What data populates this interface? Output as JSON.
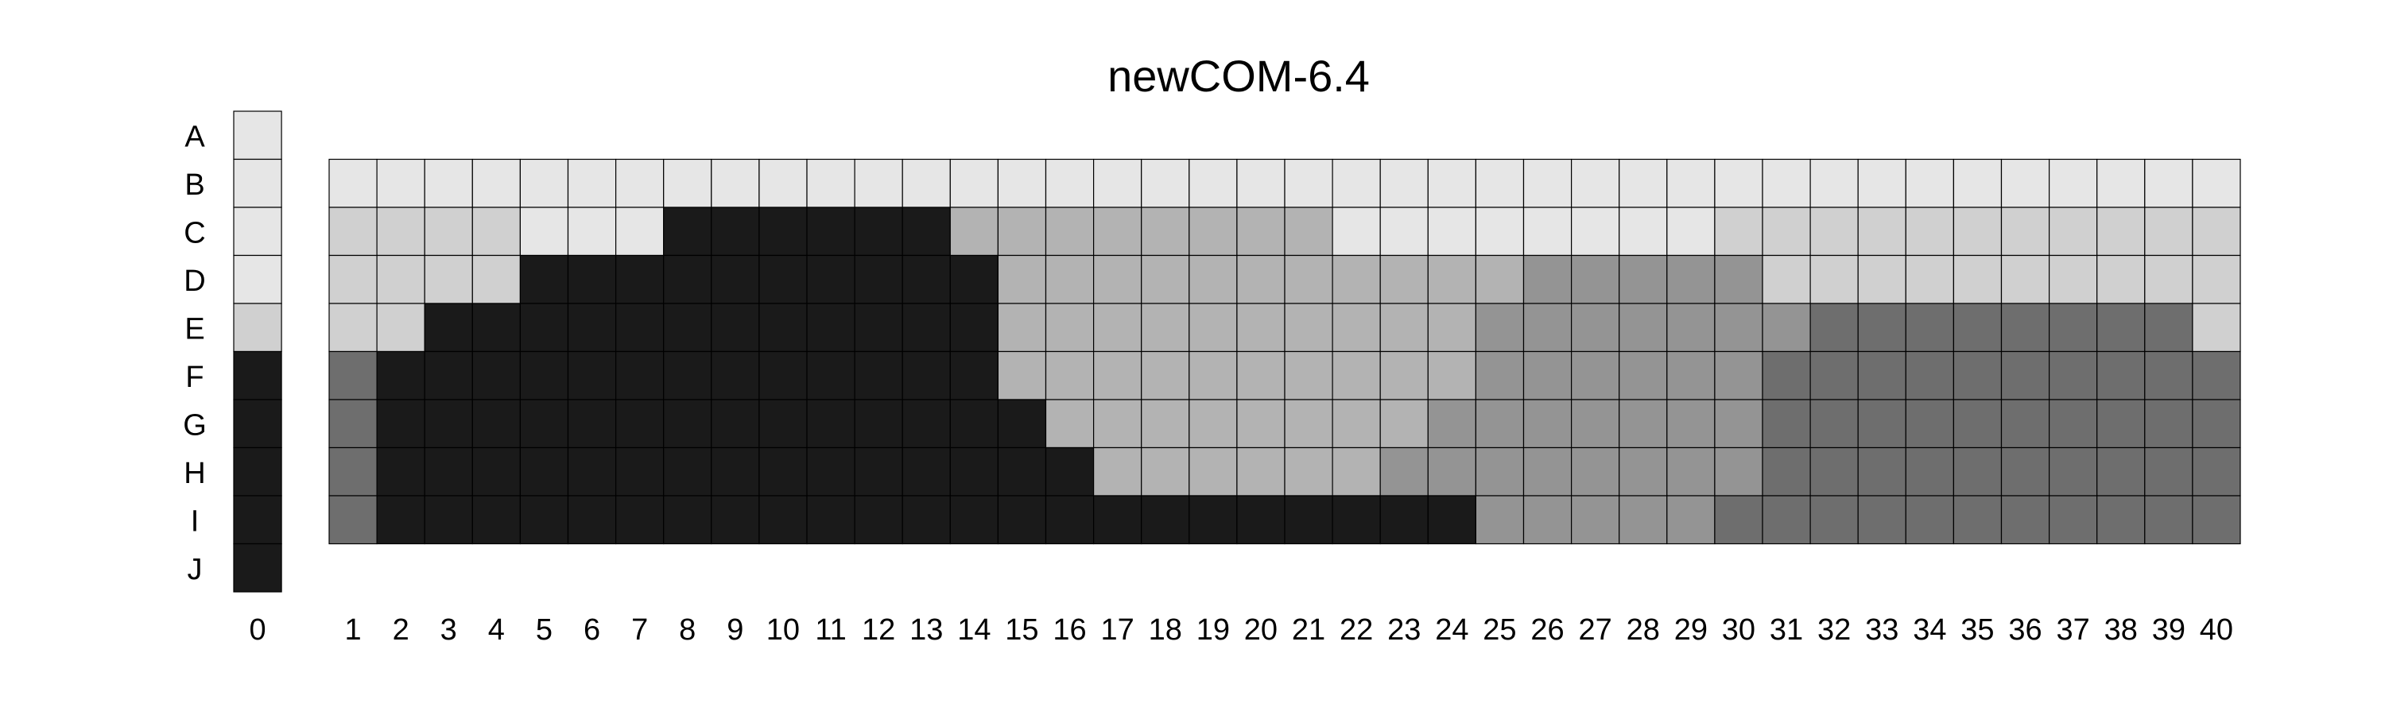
{
  "chart_data": {
    "type": "heatmap",
    "title": "newCOM-6.4",
    "xlabel": "",
    "ylabel": "",
    "row_labels": [
      "A",
      "B",
      "C",
      "D",
      "E",
      "F",
      "G",
      "H",
      "I",
      "J"
    ],
    "column_labels": [
      "0",
      "1",
      "2",
      "3",
      "4",
      "5",
      "6",
      "7",
      "8",
      "9",
      "10",
      "11",
      "12",
      "13",
      "14",
      "15",
      "16",
      "17",
      "18",
      "19",
      "20",
      "21",
      "22",
      "23",
      "24",
      "25",
      "26",
      "27",
      "28",
      "29",
      "30",
      "31",
      "32",
      "33",
      "34",
      "35",
      "36",
      "37",
      "38",
      "39",
      "40"
    ],
    "grid": false,
    "legend": "none",
    "shade_colors": {
      "0": "#e6e6e6",
      "1": "#d0d0d0",
      "2": "#b3b3b3",
      "3": "#949494",
      "4": "#6e6e6e",
      "5": "#1a1a1a"
    },
    "reference_column": {
      "label": "0",
      "rows": [
        "A",
        "B",
        "C",
        "D",
        "E",
        "F",
        "G",
        "H",
        "I",
        "J"
      ],
      "values": [
        0,
        0,
        0,
        0,
        1,
        5,
        5,
        5,
        5,
        5
      ]
    },
    "main_grid": {
      "rows": [
        "B",
        "C",
        "D",
        "E",
        "F",
        "G",
        "H",
        "I"
      ],
      "columns": [
        "1",
        "2",
        "3",
        "4",
        "5",
        "6",
        "7",
        "8",
        "9",
        "10",
        "11",
        "12",
        "13",
        "14",
        "15",
        "16",
        "17",
        "18",
        "19",
        "20",
        "21",
        "22",
        "23",
        "24",
        "25",
        "26",
        "27",
        "28",
        "29",
        "30",
        "31",
        "32",
        "33",
        "34",
        "35",
        "36",
        "37",
        "38",
        "39",
        "40"
      ],
      "values": [
        [
          0,
          0,
          0,
          0,
          0,
          0,
          0,
          0,
          0,
          0,
          0,
          0,
          0,
          0,
          0,
          0,
          0,
          0,
          0,
          0,
          0,
          0,
          0,
          0,
          0,
          0,
          0,
          0,
          0,
          0,
          0,
          0,
          0,
          0,
          0,
          0,
          0,
          0,
          0,
          0
        ],
        [
          1,
          1,
          1,
          1,
          0,
          0,
          0,
          5,
          5,
          5,
          5,
          5,
          5,
          2,
          2,
          2,
          2,
          2,
          2,
          2,
          2,
          0,
          0,
          0,
          0,
          0,
          0,
          0,
          0,
          1,
          1,
          1,
          1,
          1,
          1,
          1,
          1,
          1,
          1,
          1
        ],
        [
          1,
          1,
          1,
          1,
          5,
          5,
          5,
          5,
          5,
          5,
          5,
          5,
          5,
          5,
          2,
          2,
          2,
          2,
          2,
          2,
          2,
          2,
          2,
          2,
          2,
          3,
          3,
          3,
          3,
          3,
          1,
          1,
          1,
          1,
          1,
          1,
          1,
          1,
          1,
          1
        ],
        [
          1,
          1,
          5,
          5,
          5,
          5,
          5,
          5,
          5,
          5,
          5,
          5,
          5,
          5,
          2,
          2,
          2,
          2,
          2,
          2,
          2,
          2,
          2,
          2,
          3,
          3,
          3,
          3,
          3,
          3,
          3,
          4,
          4,
          4,
          4,
          4,
          4,
          4,
          4,
          1
        ],
        [
          4,
          5,
          5,
          5,
          5,
          5,
          5,
          5,
          5,
          5,
          5,
          5,
          5,
          5,
          2,
          2,
          2,
          2,
          2,
          2,
          2,
          2,
          2,
          2,
          3,
          3,
          3,
          3,
          3,
          3,
          4,
          4,
          4,
          4,
          4,
          4,
          4,
          4,
          4,
          4
        ],
        [
          4,
          5,
          5,
          5,
          5,
          5,
          5,
          5,
          5,
          5,
          5,
          5,
          5,
          5,
          5,
          2,
          2,
          2,
          2,
          2,
          2,
          2,
          2,
          3,
          3,
          3,
          3,
          3,
          3,
          3,
          4,
          4,
          4,
          4,
          4,
          4,
          4,
          4,
          4,
          4
        ],
        [
          4,
          5,
          5,
          5,
          5,
          5,
          5,
          5,
          5,
          5,
          5,
          5,
          5,
          5,
          5,
          5,
          2,
          2,
          2,
          2,
          2,
          2,
          3,
          3,
          3,
          3,
          3,
          3,
          3,
          3,
          4,
          4,
          4,
          4,
          4,
          4,
          4,
          4,
          4,
          4
        ],
        [
          4,
          5,
          5,
          5,
          5,
          5,
          5,
          5,
          5,
          5,
          5,
          5,
          5,
          5,
          5,
          5,
          5,
          5,
          5,
          5,
          5,
          5,
          5,
          5,
          3,
          3,
          3,
          3,
          3,
          4,
          4,
          4,
          4,
          4,
          4,
          4,
          4,
          4,
          4,
          4
        ]
      ]
    }
  }
}
